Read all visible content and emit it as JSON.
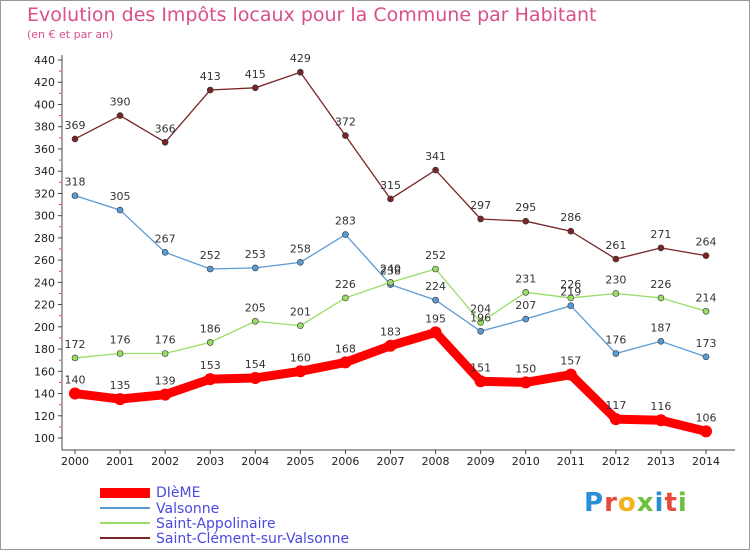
{
  "title": "Evolution des Impôts locaux pour la Commune par Habitant",
  "subtitle": "(en € et par an)",
  "logo_text": "Proxiti",
  "chart_data": {
    "type": "line",
    "title": "Evolution des Impôts locaux pour la Commune par Habitant",
    "subtitle": "(en € et par an)",
    "xlabel": "",
    "ylabel": "",
    "x": [
      2000,
      2001,
      2002,
      2003,
      2004,
      2005,
      2006,
      2007,
      2008,
      2009,
      2010,
      2011,
      2012,
      2013,
      2014
    ],
    "ylim": [
      100,
      440
    ],
    "yticks": [
      100,
      120,
      140,
      160,
      180,
      200,
      220,
      240,
      260,
      280,
      300,
      320,
      340,
      360,
      380,
      400,
      420,
      440
    ],
    "grid": false,
    "legend_position": "bottom-left",
    "series": [
      {
        "name": "DIèME",
        "color": "#ff0000",
        "emphasis": true,
        "values": [
          140,
          135,
          139,
          153,
          154,
          160,
          168,
          183,
          195,
          151,
          150,
          157,
          117,
          116,
          106
        ],
        "labels": [
          "140",
          "135",
          "139",
          "153",
          "154",
          "160",
          "168",
          "183",
          "195",
          "151",
          "150",
          "157",
          "117",
          "116",
          "106"
        ]
      },
      {
        "name": "Valsonne",
        "color": "#5b9bd5",
        "values": [
          318,
          305,
          267,
          252,
          253,
          258,
          283,
          238,
          224,
          196,
          207,
          219,
          176,
          187,
          173
        ],
        "labels": [
          "318",
          "305",
          "267",
          "252",
          "253",
          "258",
          "283",
          "238",
          "224",
          "196",
          "207",
          "219",
          "176",
          "187",
          "173"
        ]
      },
      {
        "name": "Saint-Appolinaire",
        "color": "#99dd66",
        "values": [
          172,
          176,
          176,
          186,
          205,
          201,
          226,
          240,
          252,
          204,
          231,
          226,
          230,
          226,
          214
        ],
        "labels": [
          "172",
          "176",
          "176",
          "186",
          "205",
          "201",
          "226",
          "240",
          "252",
          "204",
          "231",
          "226",
          "230",
          "226",
          "214"
        ]
      },
      {
        "name": "Saint-Clément-sur-Valsonne",
        "color": "#7a2525",
        "values": [
          369,
          390,
          366,
          413,
          415,
          429,
          372,
          315,
          341,
          297,
          295,
          286,
          261,
          271,
          264
        ],
        "labels": [
          "369",
          "390",
          "366",
          "413",
          "415",
          "429",
          "372",
          "315",
          "341",
          "297",
          "295",
          "286",
          "261",
          "271",
          "264"
        ]
      }
    ]
  }
}
